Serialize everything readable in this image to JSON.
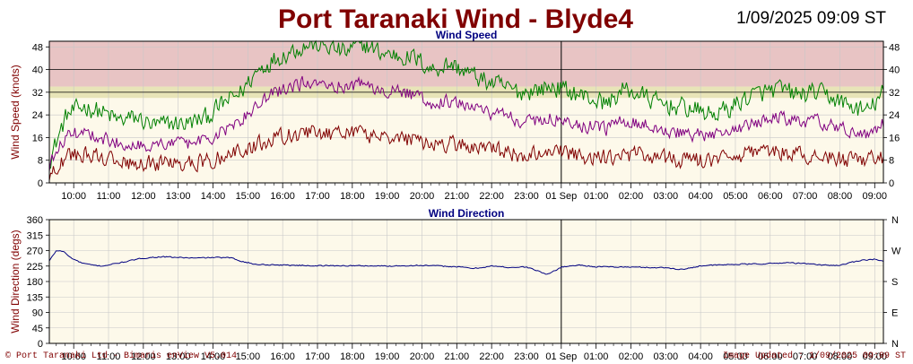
{
  "header": {
    "title": "Port Taranaki Wind - Blyde4",
    "timestamp": "1/09/2025 09:09 ST"
  },
  "footer": {
    "left": "© Port Taranaki Ltd - Bimaris enView V5.014",
    "right": "Image Updated : 1/09/2025 09:09 ST"
  },
  "colors": {
    "gust": "#008000",
    "mean": "#800080",
    "lull": "#800000",
    "direction": "#000080",
    "band_red": "#e8c4c4",
    "band_yellow": "#e8e4b8",
    "plot_bg": "#fdf9ea",
    "axis_label": "#800000",
    "plot_title": "#000080"
  },
  "chart_data": [
    {
      "type": "line",
      "title": "Wind Speed",
      "ylabel": "Wind Speed (knots)",
      "ylim": [
        0,
        50
      ],
      "yticks": [
        0,
        8,
        16,
        24,
        32,
        40,
        48
      ],
      "bands": [
        {
          "from": 30,
          "to": 34,
          "color_key": "band_yellow"
        },
        {
          "from": 34,
          "to": 50,
          "color_key": "band_red"
        }
      ],
      "xlim": [
        9.3,
        33.25
      ],
      "x_tick_labels": [
        "10:00",
        "11:00",
        "12:00",
        "13:00",
        "14:00",
        "15:00",
        "16:00",
        "17:00",
        "18:00",
        "19:00",
        "20:00",
        "21:00",
        "22:00",
        "23:00",
        "01 Sep",
        "01:00",
        "02:00",
        "03:00",
        "04:00",
        "05:00",
        "06:00",
        "07:00",
        "08:00",
        "09:00"
      ],
      "x_tick_values": [
        10,
        11,
        12,
        13,
        14,
        15,
        16,
        17,
        18,
        19,
        20,
        21,
        22,
        23,
        24,
        25,
        26,
        27,
        28,
        29,
        30,
        31,
        32,
        33
      ],
      "day_divider": 24,
      "grid": true,
      "series": [
        {
          "key": "gust",
          "color_key": "gust",
          "x": [
            9.3,
            9.8,
            10.3,
            10.8,
            11.3,
            11.8,
            12.3,
            12.8,
            13.3,
            13.8,
            14.3,
            14.8,
            15.3,
            15.8,
            16.3,
            16.8,
            17.3,
            17.8,
            18.3,
            18.8,
            19.3,
            19.8,
            20.3,
            20.8,
            21.3,
            21.8,
            22.3,
            22.8,
            23.3,
            23.8,
            24.3,
            24.8,
            25.3,
            25.8,
            26.3,
            26.8,
            27.3,
            27.8,
            28.3,
            28.8,
            29.3,
            29.8,
            30.3,
            30.8,
            31.3,
            31.8,
            32.3,
            32.8,
            33.25
          ],
          "y": [
            8,
            24,
            27,
            25,
            22,
            23,
            20,
            21,
            21,
            23,
            28,
            32,
            40,
            44,
            47,
            49,
            48,
            46,
            49,
            46,
            45,
            44,
            40,
            42,
            39,
            36,
            34,
            32,
            33,
            34,
            32,
            30,
            28,
            33,
            31,
            28,
            27,
            26,
            24,
            26,
            30,
            32,
            33,
            31,
            32,
            30,
            27,
            25,
            32
          ]
        },
        {
          "key": "mean",
          "color_key": "mean",
          "x": [
            9.3,
            9.8,
            10.3,
            10.8,
            11.3,
            11.8,
            12.3,
            12.8,
            13.3,
            13.8,
            14.3,
            14.8,
            15.3,
            15.8,
            16.3,
            16.8,
            17.3,
            17.8,
            18.3,
            18.8,
            19.3,
            19.8,
            20.3,
            20.8,
            21.3,
            21.8,
            22.3,
            22.8,
            23.3,
            23.8,
            24.3,
            24.8,
            25.3,
            25.8,
            26.3,
            26.8,
            27.3,
            27.8,
            28.3,
            28.8,
            29.3,
            29.8,
            30.3,
            30.8,
            31.3,
            31.8,
            32.3,
            32.8,
            33.25
          ],
          "y": [
            6,
            17,
            18,
            16,
            14,
            14,
            13,
            14,
            14,
            15,
            18,
            22,
            28,
            32,
            34,
            36,
            35,
            34,
            35,
            33,
            32,
            31,
            28,
            29,
            27,
            25,
            24,
            22,
            22,
            23,
            21,
            20,
            19,
            22,
            21,
            19,
            18,
            17,
            16,
            18,
            20,
            22,
            23,
            21,
            22,
            20,
            18,
            17,
            21
          ]
        },
        {
          "key": "lull",
          "color_key": "lull",
          "x": [
            9.3,
            9.8,
            10.3,
            10.8,
            11.3,
            11.8,
            12.3,
            12.8,
            13.3,
            13.8,
            14.3,
            14.8,
            15.3,
            15.8,
            16.3,
            16.8,
            17.3,
            17.8,
            18.3,
            18.8,
            19.3,
            19.8,
            20.3,
            20.8,
            21.3,
            21.8,
            22.3,
            22.8,
            23.3,
            23.8,
            24.3,
            24.8,
            25.3,
            25.8,
            26.3,
            26.8,
            27.3,
            27.8,
            28.3,
            28.8,
            29.3,
            29.8,
            30.3,
            30.8,
            31.3,
            31.8,
            32.3,
            32.8,
            33.25
          ],
          "y": [
            3,
            9,
            10,
            9,
            7,
            7,
            7,
            7,
            7,
            8,
            9,
            11,
            14,
            16,
            17,
            18,
            17,
            17,
            17,
            16,
            15,
            15,
            13,
            14,
            13,
            12,
            11,
            10,
            10,
            11,
            10,
            9,
            9,
            10,
            10,
            9,
            8,
            8,
            8,
            9,
            10,
            10,
            11,
            10,
            10,
            9,
            8,
            8,
            9
          ]
        }
      ]
    },
    {
      "type": "line",
      "title": "Wind Direction",
      "ylabel": "Wind Direction (degs)",
      "ylim": [
        0,
        360
      ],
      "yticks": [
        0,
        45,
        90,
        135,
        180,
        225,
        270,
        315,
        360
      ],
      "y2_ticks": [
        {
          "value": 0,
          "label": "N"
        },
        {
          "value": 90,
          "label": "E"
        },
        {
          "value": 180,
          "label": "S"
        },
        {
          "value": 270,
          "label": "W"
        },
        {
          "value": 360,
          "label": "N"
        }
      ],
      "xlim": [
        9.3,
        33.25
      ],
      "x_tick_labels": [
        "10:00",
        "11:00",
        "12:00",
        "13:00",
        "14:00",
        "15:00",
        "16:00",
        "17:00",
        "18:00",
        "19:00",
        "20:00",
        "21:00",
        "22:00",
        "23:00",
        "01 Sep",
        "01:00",
        "02:00",
        "03:00",
        "04:00",
        "05:00",
        "06:00",
        "07:00",
        "08:00",
        "09:00"
      ],
      "x_tick_values": [
        10,
        11,
        12,
        13,
        14,
        15,
        16,
        17,
        18,
        19,
        20,
        21,
        22,
        23,
        24,
        25,
        26,
        27,
        28,
        29,
        30,
        31,
        32,
        33
      ],
      "day_divider": 24,
      "grid": true,
      "series": [
        {
          "key": "direction",
          "color_key": "direction",
          "x": [
            9.3,
            9.5,
            9.7,
            9.9,
            10.2,
            10.5,
            10.8,
            11.2,
            11.6,
            12.0,
            12.5,
            13.0,
            13.5,
            14.0,
            14.5,
            14.8,
            15.2,
            16.0,
            17.0,
            18.0,
            19.0,
            20.0,
            21.0,
            21.5,
            22.0,
            22.5,
            23.0,
            23.3,
            23.6,
            24.0,
            24.5,
            25.0,
            26.0,
            27.0,
            27.5,
            28.0,
            29.0,
            30.0,
            30.5,
            31.0,
            31.5,
            32.0,
            32.3,
            32.6,
            33.0,
            33.25
          ],
          "y": [
            240,
            270,
            268,
            250,
            235,
            228,
            225,
            232,
            240,
            248,
            252,
            250,
            248,
            250,
            249,
            240,
            230,
            228,
            226,
            226,
            225,
            227,
            223,
            218,
            225,
            221,
            222,
            212,
            200,
            222,
            228,
            223,
            222,
            220,
            215,
            226,
            230,
            232,
            235,
            232,
            228,
            227,
            235,
            242,
            245,
            238
          ]
        }
      ]
    }
  ]
}
